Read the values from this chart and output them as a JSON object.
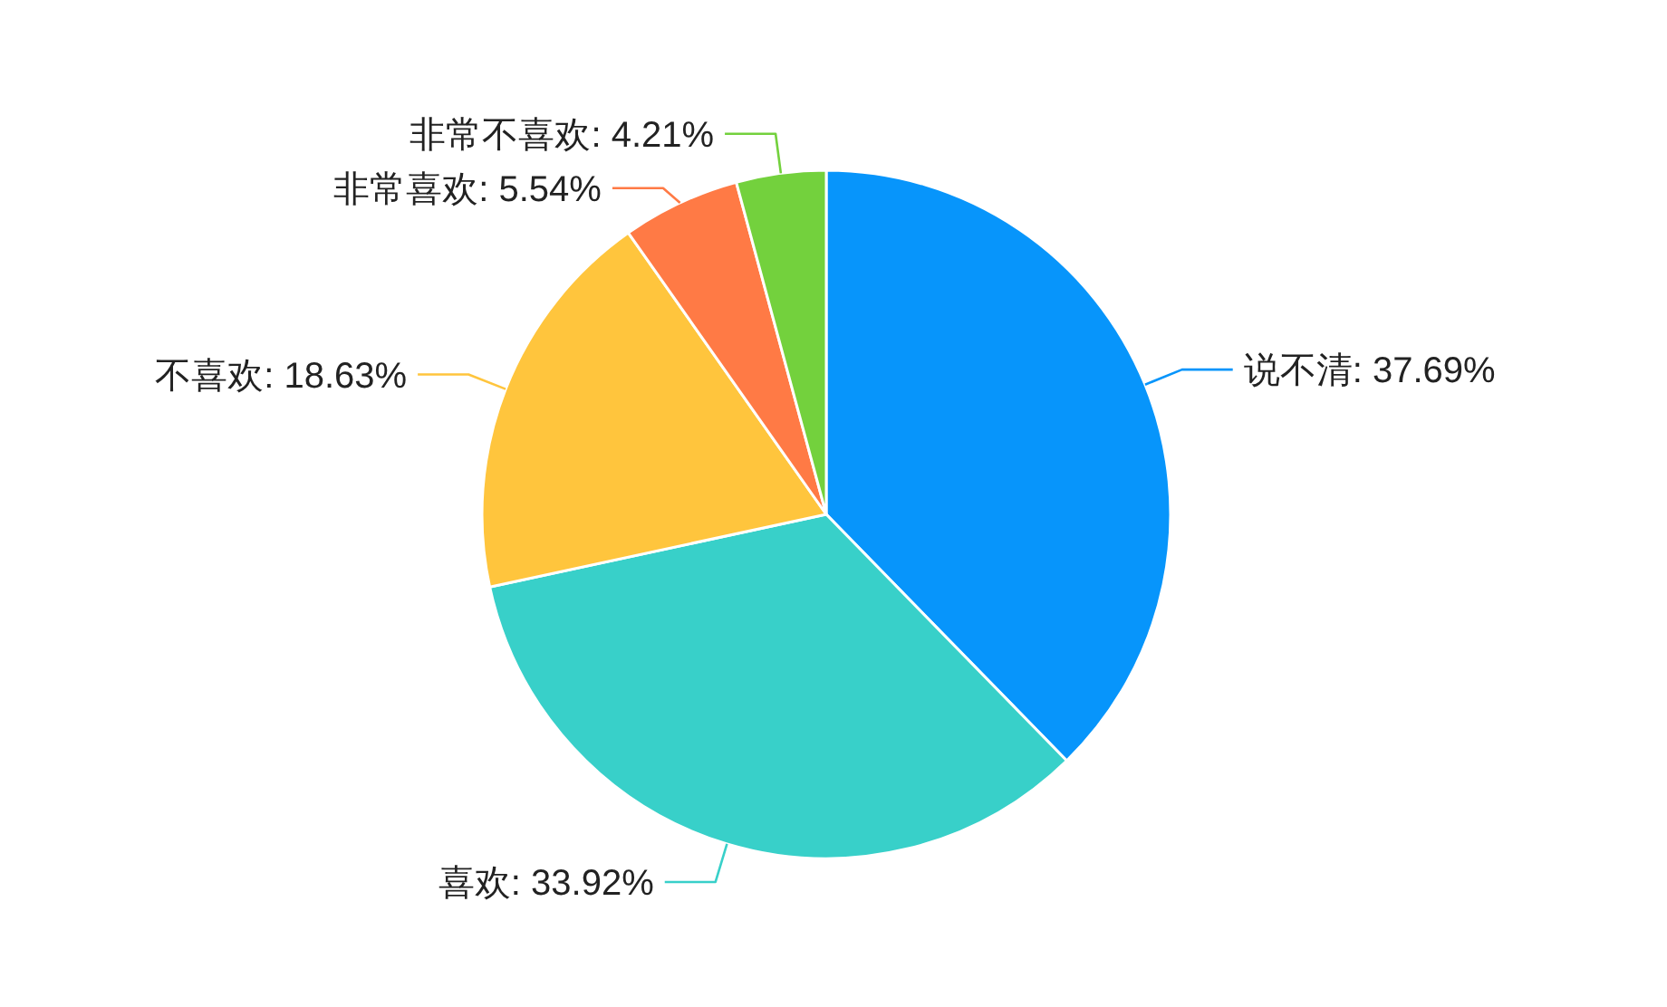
{
  "chart_data": {
    "type": "pie",
    "categories": [
      "说不清",
      "喜欢",
      "不喜欢",
      "非常喜欢",
      "非常不喜欢"
    ],
    "values": [
      37.69,
      33.92,
      18.63,
      5.54,
      4.21
    ],
    "value_labels": [
      "37.69%",
      "33.92%",
      "18.63%",
      "5.54%",
      "4.21%"
    ],
    "colors": [
      "#0795fb",
      "#38d0c9",
      "#ffc53d",
      "#ff7a45",
      "#73d13d"
    ]
  }
}
